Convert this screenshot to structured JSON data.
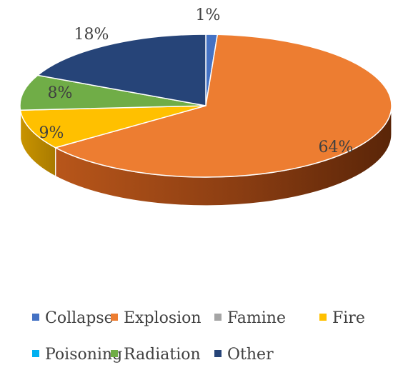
{
  "chart_data": {
    "type": "pie",
    "title": "",
    "categories": [
      "Collapse",
      "Explosion",
      "Famine",
      "Fire",
      "Poisoning",
      "Radiation",
      "Other"
    ],
    "values": [
      1,
      64,
      0,
      9,
      0,
      8,
      18
    ],
    "labels": [
      "1%",
      "64%",
      "",
      "9%",
      "",
      "8%",
      "18%"
    ],
    "colors": [
      "#4472C4",
      "#ED7D31",
      "#A5A5A5",
      "#FFC000",
      "#00B0F0",
      "#70AD47",
      "#264478"
    ],
    "legend_position": "bottom",
    "style": "3d"
  }
}
